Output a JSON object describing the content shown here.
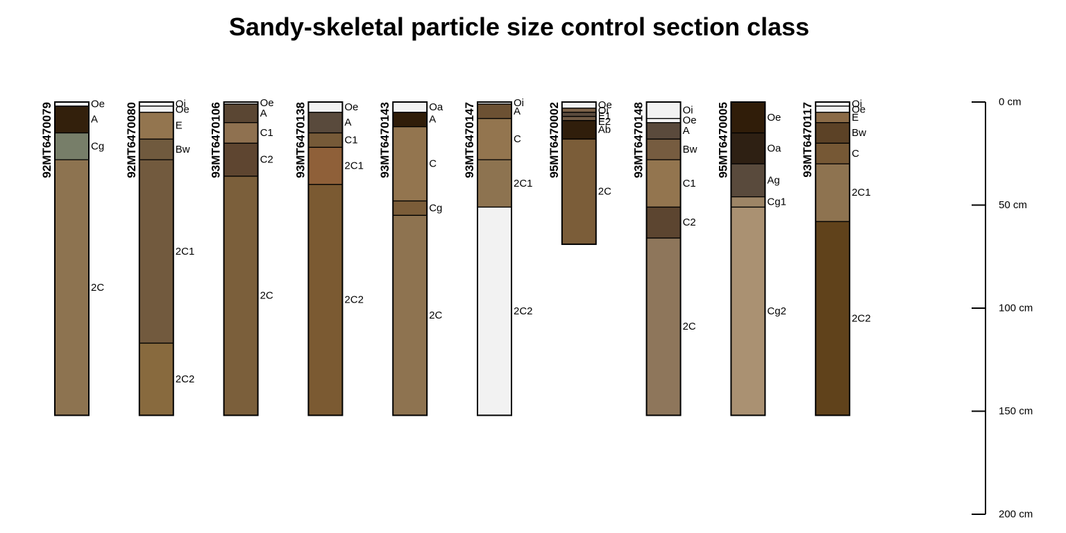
{
  "title": "Sandy-skeletal particle size control section class",
  "depth_scale": {
    "unit": "cm",
    "ticks": [
      {
        "value": 0,
        "label": "0 cm"
      },
      {
        "value": 50,
        "label": "50 cm"
      },
      {
        "value": 100,
        "label": "100 cm"
      },
      {
        "value": 150,
        "label": "150 cm"
      },
      {
        "value": 200,
        "label": "200 cm"
      }
    ]
  },
  "profiles": [
    {
      "id": "92MT6470079",
      "horizons": [
        {
          "name": "Oe",
          "top": 0,
          "bottom": 2,
          "color": "#f2f2f2"
        },
        {
          "name": "A",
          "top": 2,
          "bottom": 15,
          "color": "#33200c"
        },
        {
          "name": "Cg",
          "top": 15,
          "bottom": 28,
          "color": "#777e69"
        },
        {
          "name": "2C",
          "top": 28,
          "bottom": 152,
          "color": "#8d7350"
        }
      ]
    },
    {
      "id": "92MT6470080",
      "horizons": [
        {
          "name": "Oi",
          "top": 0,
          "bottom": 2,
          "color": "#f2f2f2"
        },
        {
          "name": "Oe",
          "top": 2,
          "bottom": 5,
          "color": "#f2f2f2"
        },
        {
          "name": "E",
          "top": 5,
          "bottom": 18,
          "color": "#93754f"
        },
        {
          "name": "Bw",
          "top": 18,
          "bottom": 28,
          "color": "#705a3e"
        },
        {
          "name": "2C1",
          "top": 28,
          "bottom": 117,
          "color": "#725a3e"
        },
        {
          "name": "2C2",
          "top": 117,
          "bottom": 152,
          "color": "#886a3e"
        }
      ]
    },
    {
      "id": "93MT6470106",
      "horizons": [
        {
          "name": "Oe",
          "top": 0,
          "bottom": 1,
          "color": "#f2f2f2"
        },
        {
          "name": "A",
          "top": 1,
          "bottom": 10,
          "color": "#5a4633"
        },
        {
          "name": "C1",
          "top": 10,
          "bottom": 20,
          "color": "#8f7150"
        },
        {
          "name": "C2",
          "top": 20,
          "bottom": 36,
          "color": "#5e4530"
        },
        {
          "name": "2C",
          "top": 36,
          "bottom": 152,
          "color": "#7b5f3b"
        }
      ]
    },
    {
      "id": "93MT6470138",
      "horizons": [
        {
          "name": "Oe",
          "top": 0,
          "bottom": 5,
          "color": "#f2f2f2"
        },
        {
          "name": "A",
          "top": 5,
          "bottom": 15,
          "color": "#594a3c"
        },
        {
          "name": "C1",
          "top": 15,
          "bottom": 22,
          "color": "#765a38"
        },
        {
          "name": "2C1",
          "top": 22,
          "bottom": 40,
          "color": "#8f6039"
        },
        {
          "name": "2C2",
          "top": 40,
          "bottom": 152,
          "color": "#7b5a32"
        }
      ]
    },
    {
      "id": "93MT6470143",
      "horizons": [
        {
          "name": "Oa",
          "top": 0,
          "bottom": 5,
          "color": "#f2f2f2"
        },
        {
          "name": "A",
          "top": 5,
          "bottom": 12,
          "color": "#301d09"
        },
        {
          "name": "C",
          "top": 12,
          "bottom": 48,
          "color": "#93754f"
        },
        {
          "name": "Cg",
          "top": 48,
          "bottom": 55,
          "color": "#7b5d39"
        },
        {
          "name": "2C",
          "top": 55,
          "bottom": 152,
          "color": "#8e7350"
        }
      ]
    },
    {
      "id": "93MT6470147",
      "horizons": [
        {
          "name": "Oi",
          "top": 0,
          "bottom": 1,
          "color": "#f2f2f2"
        },
        {
          "name": "A",
          "top": 1,
          "bottom": 8,
          "color": "#6c5133"
        },
        {
          "name": "C",
          "top": 8,
          "bottom": 28,
          "color": "#93754f"
        },
        {
          "name": "2C1",
          "top": 28,
          "bottom": 51,
          "color": "#8d7350"
        },
        {
          "name": "2C2",
          "top": 51,
          "bottom": 152,
          "color": "#f2f2f2"
        }
      ]
    },
    {
      "id": "95MT6470002",
      "horizons": [
        {
          "name": "Oe",
          "top": 0,
          "bottom": 3,
          "color": "#f2f2f2"
        },
        {
          "name": "Oi",
          "top": 3,
          "bottom": 5,
          "color": "#7b6148"
        },
        {
          "name": "E1",
          "top": 5,
          "bottom": 7,
          "color": "#5a4a3d"
        },
        {
          "name": "E2",
          "top": 7,
          "bottom": 9,
          "color": "#705a45"
        },
        {
          "name": "Ab",
          "top": 9,
          "bottom": 18,
          "color": "#301e0b"
        },
        {
          "name": "2C",
          "top": 18,
          "bottom": 69,
          "color": "#7b5d39"
        }
      ]
    },
    {
      "id": "93MT6470148",
      "horizons": [
        {
          "name": "Oi",
          "top": 0,
          "bottom": 8,
          "color": "#f2f2f2"
        },
        {
          "name": "Oe",
          "top": 8,
          "bottom": 10,
          "color": "#f2f2f2"
        },
        {
          "name": "A",
          "top": 10,
          "bottom": 18,
          "color": "#5a4a3c"
        },
        {
          "name": "Bw",
          "top": 18,
          "bottom": 28,
          "color": "#765c40"
        },
        {
          "name": "C1",
          "top": 28,
          "bottom": 51,
          "color": "#93754f"
        },
        {
          "name": "C2",
          "top": 51,
          "bottom": 66,
          "color": "#5c4530"
        },
        {
          "name": "2C",
          "top": 66,
          "bottom": 152,
          "color": "#8e765b"
        }
      ]
    },
    {
      "id": "95MT6470005",
      "horizons": [
        {
          "name": "Oe",
          "top": 0,
          "bottom": 15,
          "color": "#301d09"
        },
        {
          "name": "Oa",
          "top": 15,
          "bottom": 30,
          "color": "#2e2013"
        },
        {
          "name": "Ag",
          "top": 30,
          "bottom": 46,
          "color": "#594a3c"
        },
        {
          "name": "Cg1",
          "top": 46,
          "bottom": 51,
          "color": "#9d8566"
        },
        {
          "name": "Cg2",
          "top": 51,
          "bottom": 152,
          "color": "#aa9172"
        }
      ]
    },
    {
      "id": "93MT6470117",
      "horizons": [
        {
          "name": "Oi",
          "top": 0,
          "bottom": 2,
          "color": "#f2f2f2"
        },
        {
          "name": "Oe",
          "top": 2,
          "bottom": 5,
          "color": "#f2f2f2"
        },
        {
          "name": "E",
          "top": 5,
          "bottom": 10,
          "color": "#8b6b47"
        },
        {
          "name": "Bw",
          "top": 10,
          "bottom": 20,
          "color": "#5c4226"
        },
        {
          "name": "C",
          "top": 20,
          "bottom": 30,
          "color": "#765835"
        },
        {
          "name": "2C1",
          "top": 30,
          "bottom": 58,
          "color": "#8e7350"
        },
        {
          "name": "2C2",
          "top": 58,
          "bottom": 152,
          "color": "#60421b"
        }
      ]
    }
  ]
}
